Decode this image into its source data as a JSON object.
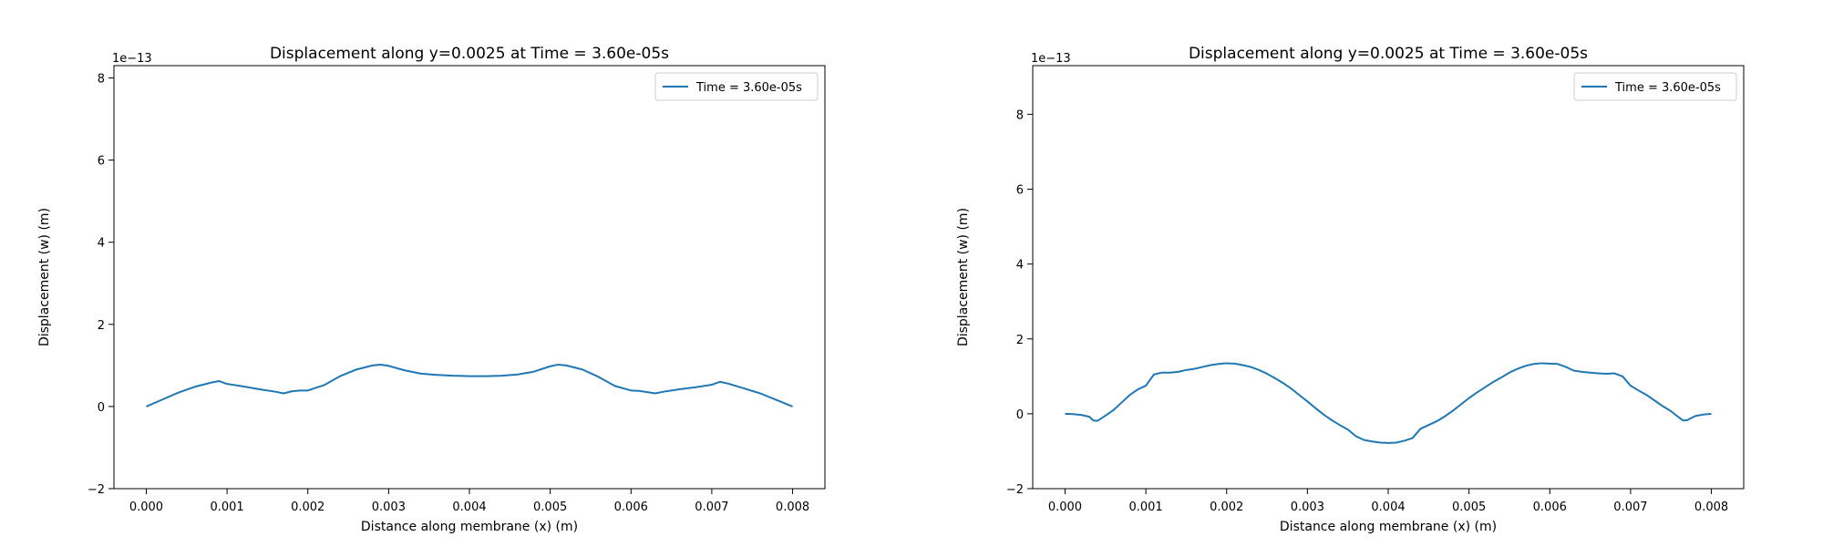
{
  "chart_data": [
    {
      "type": "line",
      "title": "Displacement along y=0.0025 at Time = 3.60e-05s",
      "xlabel": "Distance along membrane (x) (m)",
      "ylabel": "Displacement (w) (m)",
      "y_offset_text": "1e−13",
      "xlim": [
        -0.0004,
        0.0084
      ],
      "ylim": [
        -2.0,
        8.3
      ],
      "x_ticks": [
        0.0,
        0.001,
        0.002,
        0.003,
        0.004,
        0.005,
        0.006,
        0.007,
        0.008
      ],
      "x_tick_labels": [
        "0.000",
        "0.001",
        "0.002",
        "0.003",
        "0.004",
        "0.005",
        "0.006",
        "0.007",
        "0.008"
      ],
      "y_ticks": [
        -2,
        0,
        2,
        4,
        6,
        8
      ],
      "y_tick_labels": [
        "−2",
        "0",
        "2",
        "4",
        "6",
        "8"
      ],
      "grid": false,
      "legend_position": "top-right",
      "series": [
        {
          "name": "Time = 3.60e-05s",
          "color": "#1f77b4",
          "x": [
            0.0,
            0.0002,
            0.0004,
            0.0006,
            0.0008,
            0.0009,
            0.001,
            0.0012,
            0.0014,
            0.0016,
            0.0017,
            0.0018,
            0.0019,
            0.002,
            0.0022,
            0.0024,
            0.0026,
            0.0028,
            0.0029,
            0.003,
            0.0032,
            0.0034,
            0.0036,
            0.0038,
            0.004,
            0.0042,
            0.0044,
            0.0046,
            0.0048,
            0.005,
            0.0051,
            0.0052,
            0.0054,
            0.0056,
            0.0058,
            0.006,
            0.0061,
            0.0062,
            0.0063,
            0.0064,
            0.0066,
            0.0068,
            0.007,
            0.0071,
            0.0072,
            0.0074,
            0.0076,
            0.0078,
            0.008
          ],
          "y": [
            0.0,
            0.17,
            0.34,
            0.48,
            0.58,
            0.62,
            0.55,
            0.49,
            0.42,
            0.36,
            0.32,
            0.37,
            0.39,
            0.39,
            0.52,
            0.74,
            0.9,
            1.0,
            1.02,
            0.99,
            0.88,
            0.8,
            0.77,
            0.75,
            0.74,
            0.74,
            0.75,
            0.78,
            0.85,
            0.98,
            1.02,
            1.0,
            0.9,
            0.72,
            0.5,
            0.39,
            0.38,
            0.35,
            0.32,
            0.36,
            0.42,
            0.47,
            0.53,
            0.6,
            0.56,
            0.44,
            0.32,
            0.16,
            0.0
          ]
        }
      ]
    },
    {
      "type": "line",
      "title": "Displacement along y=0.0025 at Time = 3.60e-05s",
      "xlabel": "Distance along membrane (x) (m)",
      "ylabel": "Displacement (w) (m)",
      "y_offset_text": "1e−13",
      "xlim": [
        -0.0004,
        0.0084
      ],
      "ylim": [
        -2.0,
        9.3
      ],
      "x_ticks": [
        0.0,
        0.001,
        0.002,
        0.003,
        0.004,
        0.005,
        0.006,
        0.007,
        0.008
      ],
      "x_tick_labels": [
        "0.000",
        "0.001",
        "0.002",
        "0.003",
        "0.004",
        "0.005",
        "0.006",
        "0.007",
        "0.008"
      ],
      "y_ticks": [
        -2,
        0,
        2,
        4,
        6,
        8
      ],
      "y_tick_labels": [
        "−2",
        "0",
        "2",
        "4",
        "6",
        "8"
      ],
      "grid": false,
      "legend_position": "top-right",
      "series": [
        {
          "name": "Time = 3.60e-05s",
          "color": "#1f77b4",
          "x": [
            0.0,
            0.0001,
            0.0002,
            0.0003,
            0.00035,
            0.0004,
            0.0005,
            0.0006,
            0.0007,
            0.0008,
            0.0009,
            0.001,
            0.0011,
            0.0012,
            0.0013,
            0.0014,
            0.0015,
            0.0016,
            0.0017,
            0.0018,
            0.0019,
            0.002,
            0.0021,
            0.0022,
            0.0023,
            0.0024,
            0.0025,
            0.0026,
            0.0027,
            0.0028,
            0.0029,
            0.003,
            0.0031,
            0.0032,
            0.0033,
            0.0034,
            0.0035,
            0.0036,
            0.0037,
            0.0038,
            0.0039,
            0.004,
            0.0041,
            0.0042,
            0.0043,
            0.0044,
            0.0045,
            0.0046,
            0.0047,
            0.0048,
            0.0049,
            0.005,
            0.0051,
            0.0052,
            0.0053,
            0.0054,
            0.0055,
            0.0056,
            0.0057,
            0.0058,
            0.0059,
            0.006,
            0.0061,
            0.0062,
            0.0063,
            0.0064,
            0.0065,
            0.0066,
            0.0067,
            0.0068,
            0.0069,
            0.007,
            0.0071,
            0.0072,
            0.0073,
            0.0074,
            0.0075,
            0.0076,
            0.00765,
            0.0077,
            0.0078,
            0.0079,
            0.008
          ],
          "y": [
            0.0,
            -0.01,
            -0.03,
            -0.08,
            -0.18,
            -0.19,
            -0.05,
            0.1,
            0.3,
            0.5,
            0.65,
            0.75,
            1.05,
            1.1,
            1.1,
            1.12,
            1.17,
            1.2,
            1.25,
            1.3,
            1.33,
            1.35,
            1.34,
            1.3,
            1.25,
            1.17,
            1.07,
            0.95,
            0.82,
            0.67,
            0.5,
            0.33,
            0.15,
            -0.02,
            -0.17,
            -0.3,
            -0.42,
            -0.6,
            -0.7,
            -0.74,
            -0.77,
            -0.78,
            -0.77,
            -0.72,
            -0.65,
            -0.4,
            -0.3,
            -0.2,
            -0.07,
            0.08,
            0.25,
            0.42,
            0.57,
            0.71,
            0.85,
            0.97,
            1.1,
            1.2,
            1.28,
            1.33,
            1.35,
            1.34,
            1.33,
            1.25,
            1.15,
            1.12,
            1.1,
            1.08,
            1.07,
            1.08,
            1.0,
            0.75,
            0.62,
            0.5,
            0.35,
            0.2,
            0.07,
            -0.1,
            -0.18,
            -0.17,
            -0.06,
            -0.02,
            0.0
          ]
        }
      ]
    }
  ]
}
